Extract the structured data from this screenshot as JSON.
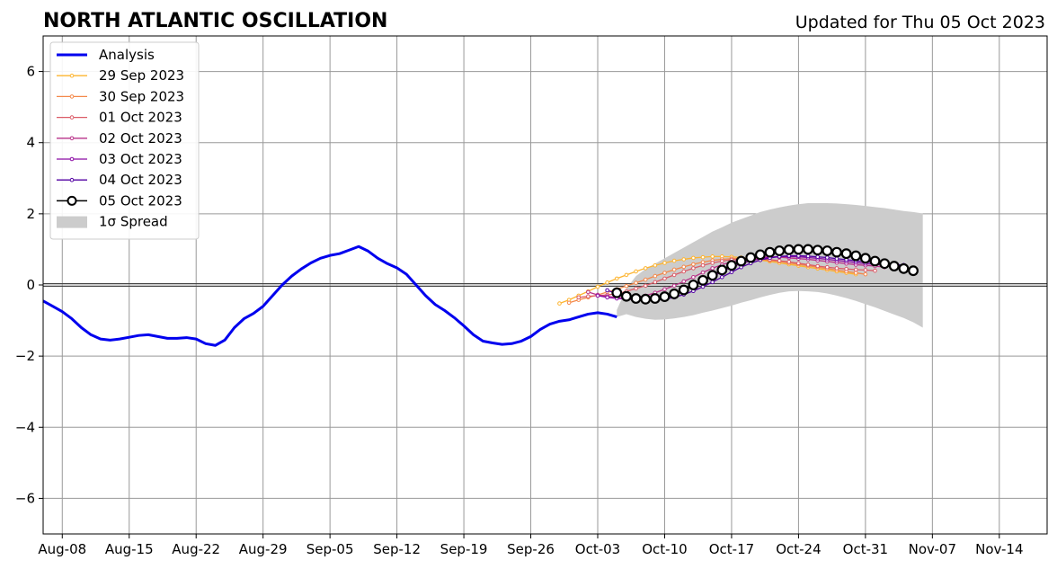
{
  "chart_data": {
    "type": "line",
    "title": "NORTH ATLANTIC OSCILLATION",
    "subtitle": "Updated for Thu 05 Oct 2023",
    "xlabel": "",
    "ylabel": "",
    "x_ticks": [
      "Aug-08",
      "Aug-15",
      "Aug-22",
      "Aug-29",
      "Sep-05",
      "Sep-12",
      "Sep-19",
      "Sep-26",
      "Oct-03",
      "Oct-10",
      "Oct-17",
      "Oct-24",
      "Oct-31",
      "Nov-07",
      "Nov-14"
    ],
    "y_ticks": [
      "−6",
      "−4",
      "−2",
      "0",
      "2",
      "4",
      "6"
    ],
    "xlim": [
      "2023-08-06",
      "2023-11-19"
    ],
    "ylim": [
      -7,
      7
    ],
    "grid": true,
    "legend_position": "upper-left",
    "legend": {
      "analysis": "Analysis",
      "f0929": "29 Sep 2023",
      "f0930": "30 Sep 2023",
      "f1001": "01 Oct 2023",
      "f1002": "02 Oct 2023",
      "f1003": "03 Oct 2023",
      "f1004": "04 Oct 2023",
      "f1005": "05 Oct 2023",
      "spread": "1σ Spread"
    },
    "colors": {
      "analysis": "#0000ee",
      "f0929": "#fdb42f",
      "f0930": "#f48849",
      "f1001": "#db5c68",
      "f1002": "#b83289",
      "f1003": "#8b0aa5",
      "f1004": "#5302a3",
      "f1005": "#000000",
      "spread": "#cccccc"
    },
    "analysis": {
      "name": "Analysis",
      "x": [
        "2023-08-06",
        "2023-08-07",
        "2023-08-08",
        "2023-08-09",
        "2023-08-10",
        "2023-08-11",
        "2023-08-12",
        "2023-08-13",
        "2023-08-14",
        "2023-08-15",
        "2023-08-16",
        "2023-08-17",
        "2023-08-18",
        "2023-08-19",
        "2023-08-20",
        "2023-08-21",
        "2023-08-22",
        "2023-08-23",
        "2023-08-24",
        "2023-08-25",
        "2023-08-26",
        "2023-08-27",
        "2023-08-28",
        "2023-08-29",
        "2023-08-30",
        "2023-08-31",
        "2023-09-01",
        "2023-09-02",
        "2023-09-03",
        "2023-09-04",
        "2023-09-05",
        "2023-09-06",
        "2023-09-07",
        "2023-09-08",
        "2023-09-09",
        "2023-09-10",
        "2023-09-11",
        "2023-09-12",
        "2023-09-13",
        "2023-09-14",
        "2023-09-15",
        "2023-09-16",
        "2023-09-17",
        "2023-09-18",
        "2023-09-19",
        "2023-09-20",
        "2023-09-21",
        "2023-09-22",
        "2023-09-23",
        "2023-09-24",
        "2023-09-25",
        "2023-09-26",
        "2023-09-27",
        "2023-09-28",
        "2023-09-29",
        "2023-09-30",
        "2023-10-01",
        "2023-10-02",
        "2023-10-03",
        "2023-10-04",
        "2023-10-05"
      ],
      "y": [
        -0.45,
        -0.6,
        -0.75,
        -0.95,
        -1.2,
        -1.4,
        -1.52,
        -1.55,
        -1.52,
        -1.47,
        -1.42,
        -1.4,
        -1.45,
        -1.5,
        -1.5,
        -1.48,
        -1.52,
        -1.65,
        -1.7,
        -1.55,
        -1.2,
        -0.95,
        -0.8,
        -0.6,
        -0.3,
        0.0,
        0.25,
        0.45,
        0.62,
        0.75,
        0.83,
        0.88,
        0.98,
        1.08,
        0.95,
        0.75,
        0.6,
        0.48,
        0.3,
        0.0,
        -0.3,
        -0.55,
        -0.72,
        -0.92,
        -1.15,
        -1.4,
        -1.58,
        -1.63,
        -1.67,
        -1.65,
        -1.58,
        -1.45,
        -1.25,
        -1.1,
        -1.02,
        -0.98,
        -0.9,
        -0.82,
        -0.78,
        -0.82,
        -0.9
      ]
    },
    "forecasts": [
      {
        "name": "29 Sep 2023",
        "x_start": "2023-09-29",
        "y": [
          -0.52,
          -0.42,
          -0.3,
          -0.18,
          -0.05,
          0.07,
          0.18,
          0.28,
          0.38,
          0.47,
          0.55,
          0.62,
          0.68,
          0.72,
          0.76,
          0.78,
          0.8,
          0.8,
          0.79,
          0.77,
          0.74,
          0.7,
          0.66,
          0.62,
          0.58,
          0.54,
          0.5,
          0.46,
          0.42,
          0.38,
          0.34,
          0.3
        ]
      },
      {
        "name": "30 Sep 2023",
        "x_start": "2023-09-30",
        "y": [
          -0.5,
          -0.42,
          -0.35,
          -0.28,
          -0.2,
          -0.12,
          -0.03,
          0.06,
          0.15,
          0.25,
          0.34,
          0.43,
          0.51,
          0.58,
          0.64,
          0.69,
          0.72,
          0.74,
          0.75,
          0.74,
          0.72,
          0.69,
          0.66,
          0.62,
          0.58,
          0.54,
          0.5,
          0.46,
          0.42,
          0.38,
          0.34,
          0.3
        ]
      },
      {
        "name": "01 Oct 2023",
        "x_start": "2023-10-01",
        "y": [
          -0.35,
          -0.32,
          -0.3,
          -0.28,
          -0.25,
          -0.18,
          -0.1,
          -0.02,
          0.08,
          0.18,
          0.28,
          0.38,
          0.47,
          0.55,
          0.62,
          0.67,
          0.71,
          0.73,
          0.74,
          0.73,
          0.71,
          0.68,
          0.65,
          0.61,
          0.57,
          0.53,
          0.5,
          0.47,
          0.45,
          0.43,
          0.42,
          0.4
        ]
      },
      {
        "name": "02 Oct 2023",
        "x_start": "2023-10-02",
        "y": [
          -0.2,
          -0.28,
          -0.32,
          -0.35,
          -0.36,
          -0.35,
          -0.3,
          -0.22,
          -0.12,
          -0.02,
          0.1,
          0.22,
          0.35,
          0.47,
          0.57,
          0.65,
          0.71,
          0.75,
          0.78,
          0.79,
          0.78,
          0.76,
          0.74,
          0.72,
          0.69,
          0.66,
          0.63,
          0.6,
          0.57,
          0.55,
          0.53,
          0.5
        ]
      },
      {
        "name": "03 Oct 2023",
        "x_start": "2023-10-03",
        "y": [
          -0.3,
          -0.35,
          -0.38,
          -0.4,
          -0.42,
          -0.42,
          -0.4,
          -0.34,
          -0.25,
          -0.15,
          -0.03,
          0.1,
          0.23,
          0.37,
          0.5,
          0.6,
          0.68,
          0.74,
          0.78,
          0.8,
          0.8,
          0.79,
          0.77,
          0.75,
          0.72,
          0.69,
          0.66,
          0.63,
          0.6,
          0.58,
          0.56,
          0.55
        ]
      },
      {
        "name": "04 Oct 2023",
        "x_start": "2023-10-04",
        "y": [
          -0.15,
          -0.25,
          -0.33,
          -0.38,
          -0.41,
          -0.42,
          -0.4,
          -0.35,
          -0.27,
          -0.17,
          -0.05,
          0.08,
          0.22,
          0.36,
          0.5,
          0.61,
          0.7,
          0.76,
          0.8,
          0.82,
          0.82,
          0.81,
          0.79,
          0.77,
          0.74,
          0.71,
          0.68,
          0.65,
          0.62,
          0.6,
          0.58,
          0.56
        ]
      },
      {
        "name": "05 Oct 2023",
        "x_start": "2023-10-05",
        "y": [
          -0.22,
          -0.32,
          -0.38,
          -0.4,
          -0.38,
          -0.33,
          -0.25,
          -0.14,
          0.0,
          0.13,
          0.27,
          0.42,
          0.55,
          0.67,
          0.77,
          0.85,
          0.92,
          0.96,
          0.99,
          1.0,
          1.0,
          0.98,
          0.96,
          0.92,
          0.88,
          0.82,
          0.75,
          0.67,
          0.6,
          0.53,
          0.46,
          0.4
        ]
      }
    ],
    "spread": {
      "name": "1σ Spread",
      "x_start": "2023-10-05",
      "upper": [
        -0.7,
        -0.1,
        0.25,
        0.45,
        0.6,
        0.75,
        0.9,
        1.05,
        1.2,
        1.35,
        1.5,
        1.62,
        1.75,
        1.85,
        1.95,
        2.05,
        2.12,
        2.18,
        2.23,
        2.27,
        2.3,
        2.3,
        2.3,
        2.29,
        2.27,
        2.25,
        2.22,
        2.19,
        2.16,
        2.12,
        2.08,
        2.05,
        2.01
      ],
      "lower": [
        -0.9,
        -0.82,
        -0.9,
        -0.95,
        -0.98,
        -0.97,
        -0.94,
        -0.9,
        -0.85,
        -0.78,
        -0.72,
        -0.65,
        -0.58,
        -0.5,
        -0.43,
        -0.35,
        -0.28,
        -0.22,
        -0.18,
        -0.17,
        -0.18,
        -0.2,
        -0.24,
        -0.3,
        -0.37,
        -0.45,
        -0.54,
        -0.63,
        -0.73,
        -0.83,
        -0.93,
        -1.05,
        -1.2
      ]
    }
  }
}
